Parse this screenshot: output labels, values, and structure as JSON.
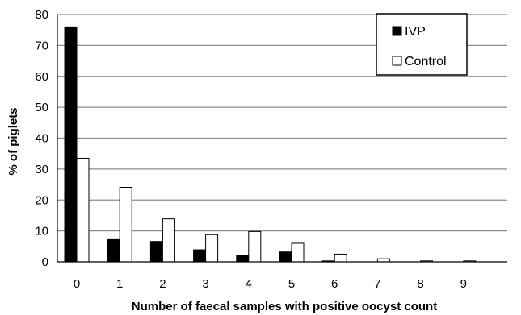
{
  "chart_data": {
    "type": "bar",
    "title": "",
    "xlabel": "Number of faecal samples with positive oocyst count",
    "ylabel": "% of piglets",
    "categories": [
      "0",
      "1",
      "2",
      "3",
      "4",
      "5",
      "6",
      "7",
      "8",
      "9"
    ],
    "ylim": [
      0,
      80
    ],
    "yticks": [
      "0",
      "10",
      "20",
      "30",
      "40",
      "50",
      "60",
      "70",
      "80"
    ],
    "grid": true,
    "legend_position": "top-right",
    "series": [
      {
        "name": "IVP",
        "color": "#000000",
        "fill": "#000000",
        "values": [
          76,
          7.2,
          6.6,
          3.9,
          2.1,
          3.2,
          0.3,
          0,
          0,
          0
        ]
      },
      {
        "name": "Control",
        "color": "#000000",
        "fill": "#ffffff",
        "values": [
          33.5,
          24.1,
          13.9,
          8.8,
          9.8,
          6.0,
          2.5,
          1.0,
          0.3,
          0.3
        ]
      }
    ]
  }
}
